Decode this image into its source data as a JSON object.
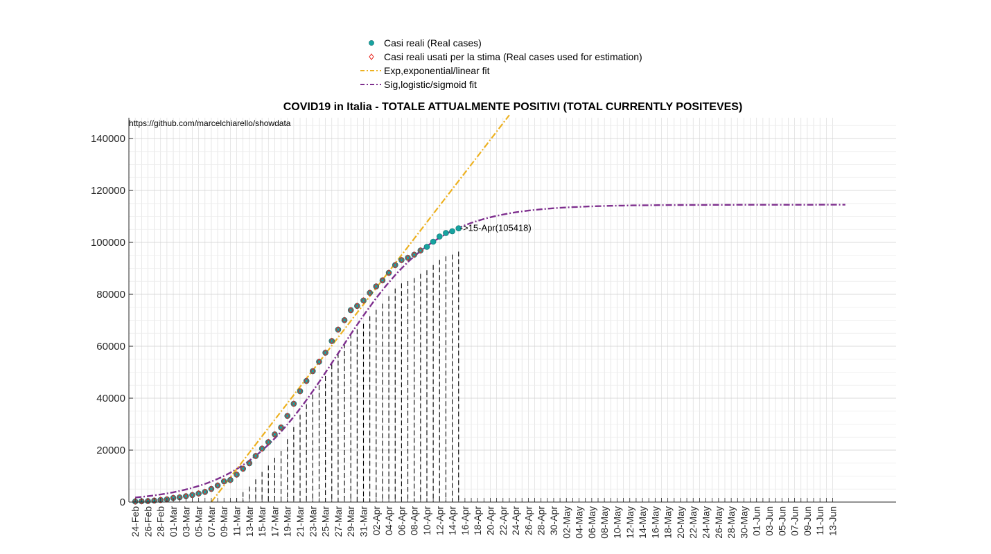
{
  "chart_data": {
    "type": "line",
    "title": "COVID19 in Italia - TOTALE ATTUALMENTE POSITIVI (TOTAL CURRENTLY POSITEVES)",
    "source_note": "https://github.com/marcelchiarello/showdata",
    "xlabel": "",
    "ylabel": "",
    "ylim": [
      0,
      148000
    ],
    "xlim": [
      "2020-02-23",
      "2020-06-23"
    ],
    "grid": true,
    "legend_position": "top-center",
    "yticks": [
      0,
      20000,
      40000,
      60000,
      80000,
      100000,
      120000,
      140000
    ],
    "ytick_labels": [
      "0",
      "20000",
      "40000",
      "60000",
      "80000",
      "100000",
      "120000",
      "140000"
    ],
    "xtick_labels": [
      "24-Feb",
      "26-Feb",
      "28-Feb",
      "01-Mar",
      "03-Mar",
      "05-Mar",
      "07-Mar",
      "09-Mar",
      "11-Mar",
      "13-Mar",
      "15-Mar",
      "17-Mar",
      "19-Mar",
      "21-Mar",
      "23-Mar",
      "25-Mar",
      "27-Mar",
      "29-Mar",
      "31-Mar",
      "02-Apr",
      "04-Apr",
      "06-Apr",
      "08-Apr",
      "10-Apr",
      "12-Apr",
      "14-Apr",
      "16-Apr",
      "18-Apr",
      "20-Apr",
      "22-Apr",
      "24-Apr",
      "26-Apr",
      "28-Apr",
      "30-Apr",
      "02-May",
      "04-May",
      "06-May",
      "08-May",
      "10-May",
      "12-May",
      "14-May",
      "16-May",
      "18-May",
      "20-May",
      "22-May",
      "24-May",
      "26-May",
      "28-May",
      "30-May",
      "01-Jun",
      "03-Jun",
      "05-Jun",
      "07-Jun",
      "09-Jun",
      "11-Jun",
      "13-Jun"
    ],
    "annotation": {
      "date": "2020-04-15",
      "value": 105418,
      "text": "->15-Apr(105418)"
    },
    "series": [
      {
        "name": "Casi reali (Real cases)",
        "kind": "markers",
        "marker": "filled-circle",
        "color": "#17a2a0",
        "start_date": "2020-02-24",
        "values": [
          221,
          311,
          385,
          588,
          821,
          1049,
          1577,
          1835,
          2263,
          2706,
          3296,
          3916,
          5061,
          6387,
          7985,
          8514,
          10590,
          12839,
          14955,
          17750,
          20603,
          23073,
          26062,
          28710,
          33190,
          37860,
          42681,
          46638,
          50418,
          54030,
          57521,
          62013,
          66414,
          70065,
          73880,
          75528,
          77635,
          80572,
          83049,
          85388,
          88274,
          91246,
          93187,
          94067,
          95262,
          96877,
          98273,
          100269,
          102253,
          103616,
          104291,
          105418
        ]
      },
      {
        "name": "Casi reali usati per la stima (Real cases used for estimation)",
        "kind": "markers",
        "marker": "open-diamond",
        "color": "#e8231c",
        "start_date": "2020-02-24",
        "values": [
          221,
          311,
          385,
          588,
          821,
          1049,
          1577,
          1835,
          2263,
          2706,
          3296,
          3916,
          5061,
          6387,
          7985,
          8514,
          10590,
          12839,
          14955,
          17750,
          20603,
          23073,
          26062,
          28710,
          33190,
          37860,
          42681,
          46638,
          50418,
          54030,
          57521,
          62013,
          66414,
          70065,
          73880,
          75528,
          77635,
          80572,
          83049,
          85388,
          88274,
          91246,
          93187,
          94067,
          95262,
          96877
        ]
      },
      {
        "name": "Exp,exponential/linear fit",
        "kind": "line",
        "style": "dash-dot",
        "color": "#edb120",
        "x": [
          "2020-03-07",
          "2020-04-23"
        ],
        "values": [
          0,
          149000
        ]
      },
      {
        "name": "Sig,logistic/sigmoid fit",
        "kind": "line",
        "style": "dash-dot",
        "color": "#7e2f8e",
        "start_date": "2020-02-24",
        "model": {
          "type": "logistic",
          "L": 114500,
          "k": 0.13,
          "midpoint_date": "2020-03-27"
        },
        "end_date": "2020-06-15"
      }
    ],
    "daily_marker_lines": {
      "style": "dashed",
      "color": "#000000",
      "from": "2020-03-08",
      "to": "2020-04-15"
    }
  }
}
